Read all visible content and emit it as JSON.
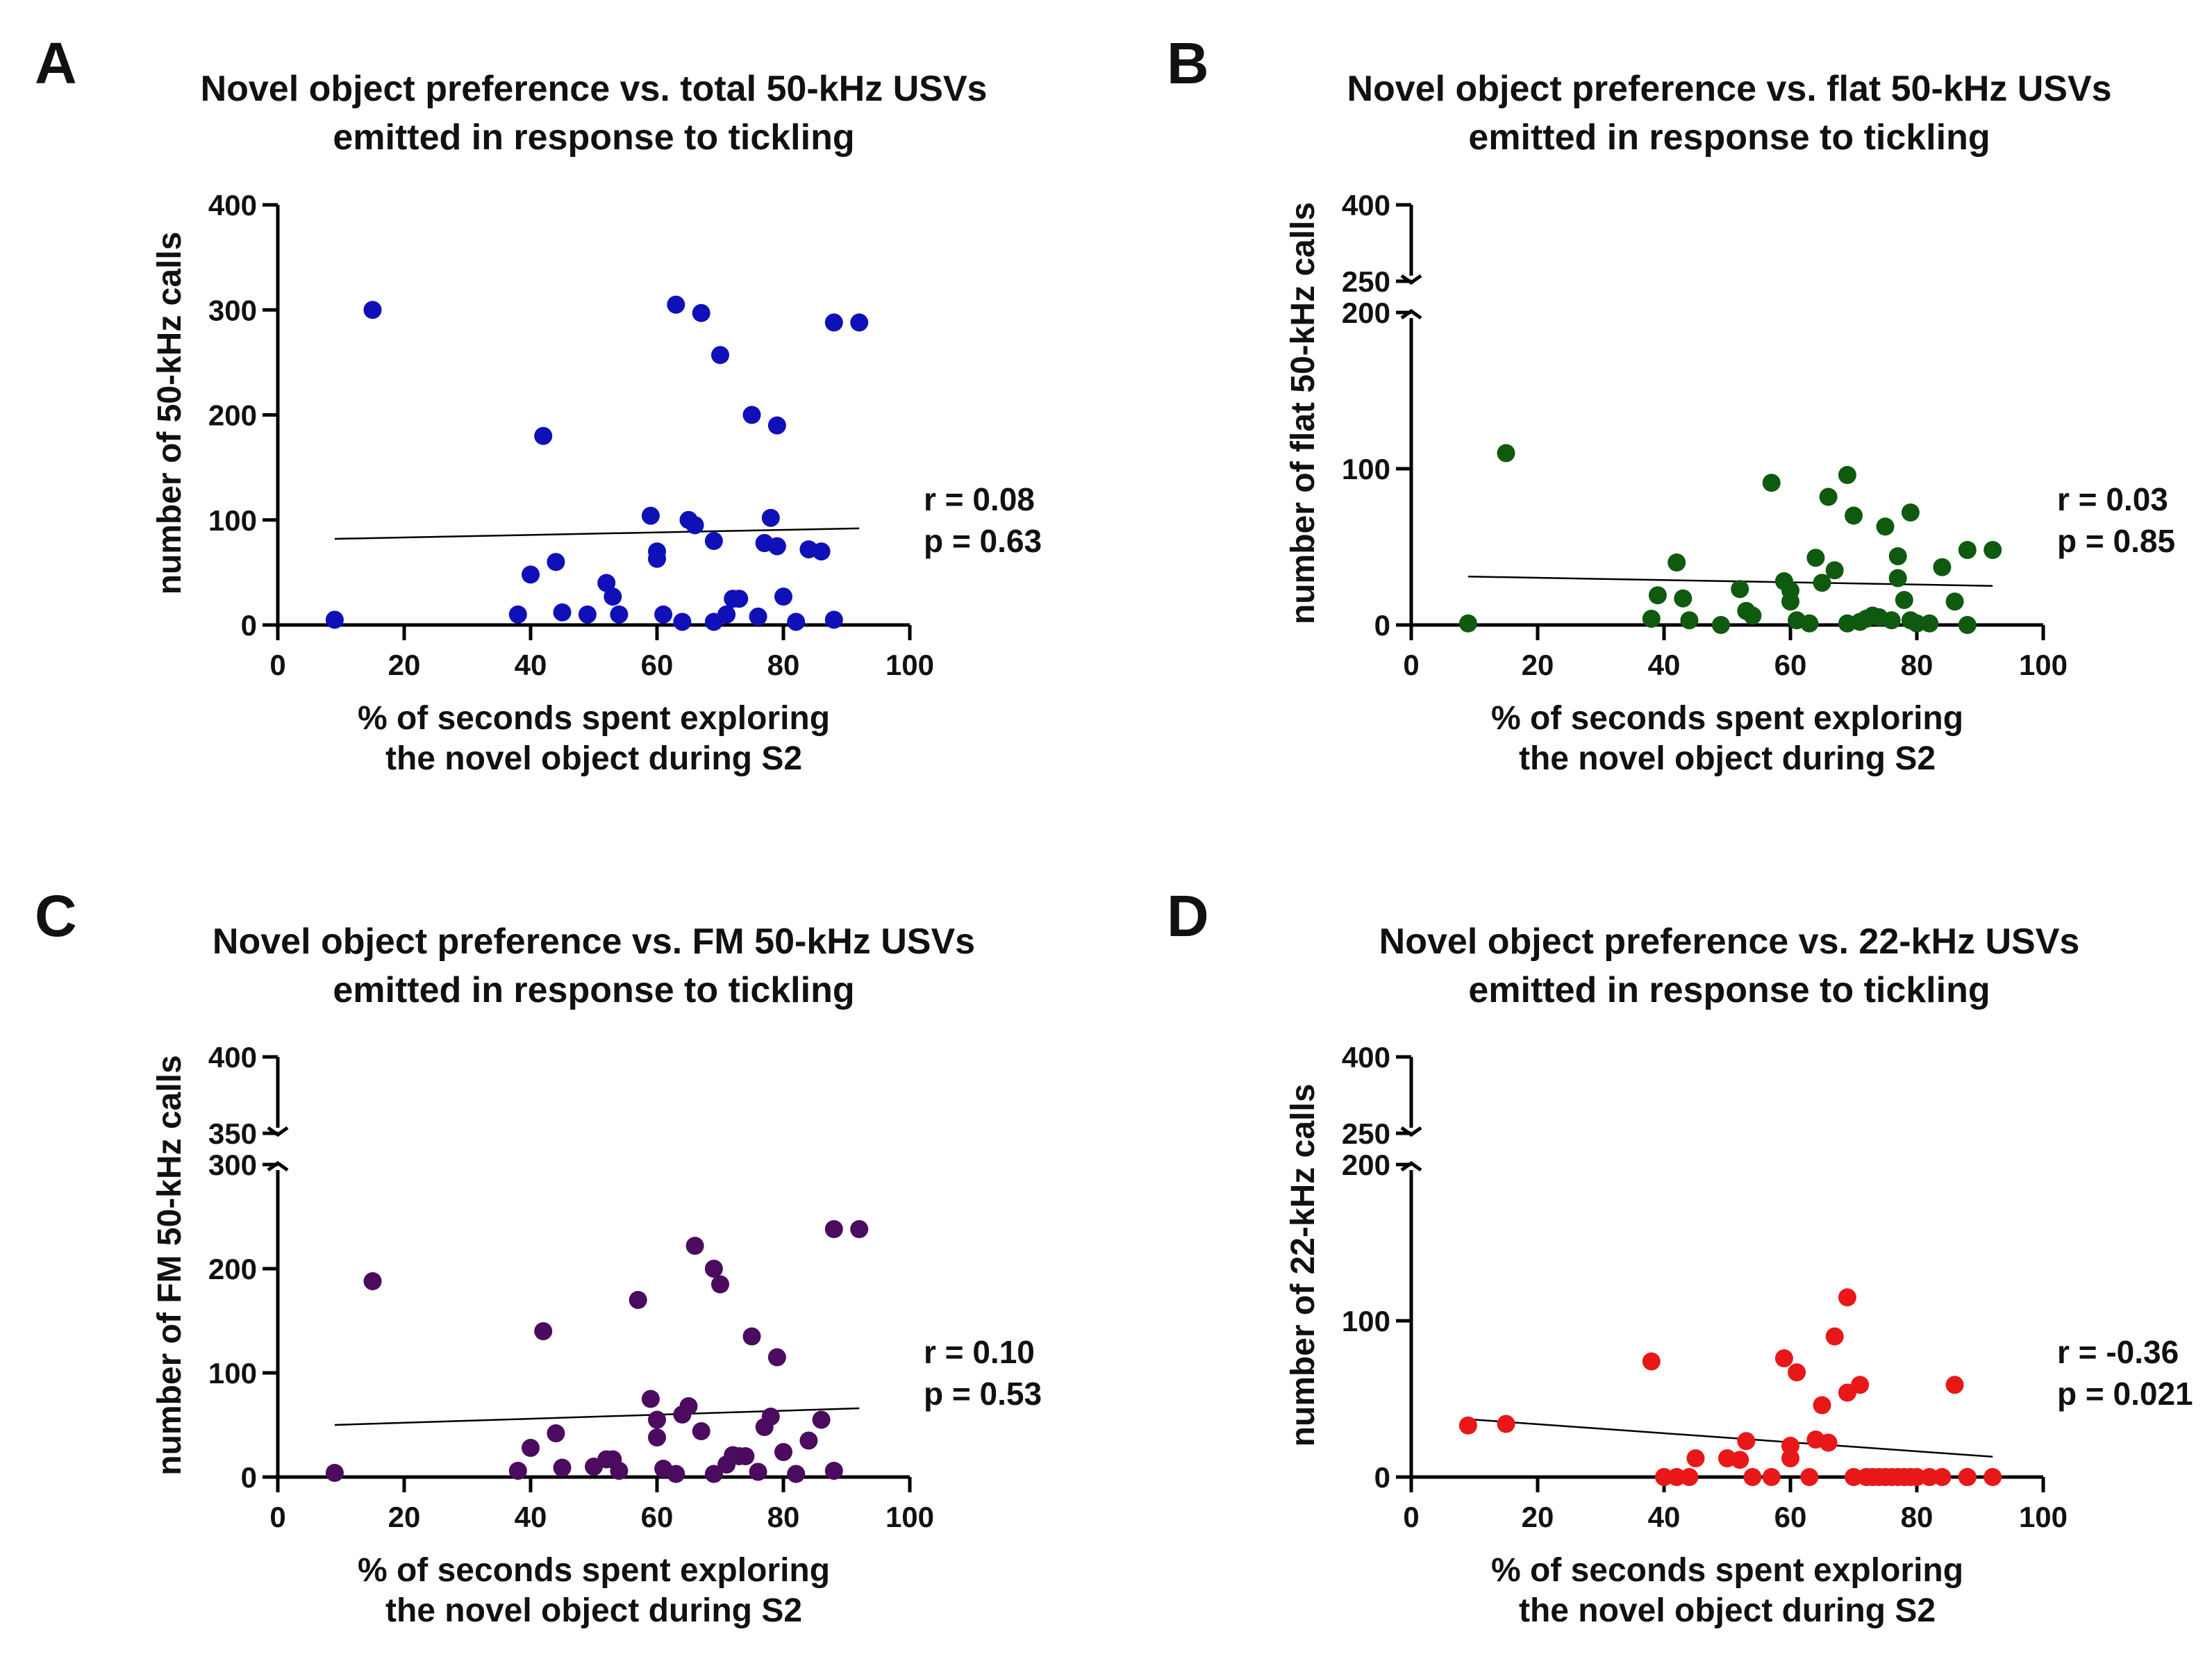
{
  "chart_data": [
    {
      "panel": "A",
      "type": "scatter",
      "title": [
        "Novel object preference vs. total 50-kHz USVs",
        "emitted in response to tickling"
      ],
      "xlabel": [
        "% of seconds spent exploring",
        "the novel object during S2"
      ],
      "ylabel": "number of 50-kHz calls",
      "xlim": [
        0,
        100
      ],
      "xticks": [
        "0",
        "20",
        "40",
        "60",
        "80",
        "100"
      ],
      "ylim": [
        0,
        400
      ],
      "yticks": [
        "0",
        "100",
        "200",
        "300",
        "400"
      ],
      "color": "#1010b8",
      "r_text": "r = 0.08",
      "p_text": "p = 0.63",
      "fit_line": [
        [
          9,
          82
        ],
        [
          92,
          92
        ]
      ],
      "x": [
        9,
        15,
        38,
        40,
        42,
        44,
        45,
        49,
        52,
        53,
        54,
        59,
        60,
        60,
        61,
        63,
        64,
        65,
        66,
        67,
        69,
        69,
        70,
        71,
        72,
        73,
        75,
        76,
        77,
        77,
        78,
        79,
        79,
        80,
        82,
        84,
        86,
        88,
        88,
        92
      ],
      "y": [
        5,
        300,
        10,
        48,
        180,
        60,
        12,
        10,
        40,
        27,
        10,
        104,
        70,
        63,
        10,
        305,
        3,
        100,
        95,
        297,
        80,
        3,
        257,
        10,
        25,
        25,
        200,
        8,
        78,
        78,
        102,
        75,
        190,
        27,
        3,
        72,
        70,
        5,
        288,
        288
      ]
    },
    {
      "panel": "B",
      "type": "scatter",
      "title": [
        "Novel object preference vs. flat 50-kHz USVs",
        "emitted in response to tickling"
      ],
      "xlabel": [
        "% of seconds spent exploring",
        "the novel object during S2"
      ],
      "ylabel": "number of flat 50-kHz calls",
      "xlim": [
        0,
        100
      ],
      "xticks": [
        "0",
        "20",
        "40",
        "60",
        "80",
        "100"
      ],
      "ylim": [
        0,
        400
      ],
      "yticks": [
        "0",
        "100",
        "200",
        "250",
        "400"
      ],
      "y_break": [
        200,
        250
      ],
      "color": "#0f5a0f",
      "r_text": "r = 0.03",
      "p_text": "p = 0.85",
      "fit_line": [
        [
          9,
          31
        ],
        [
          92,
          25
        ]
      ],
      "x": [
        9,
        15,
        38,
        39,
        42,
        43,
        44,
        49,
        52,
        53,
        54,
        57,
        59,
        60,
        60,
        61,
        63,
        64,
        65,
        66,
        67,
        69,
        69,
        70,
        71,
        72,
        73,
        74,
        75,
        76,
        77,
        77,
        78,
        79,
        79,
        80,
        82,
        84,
        86,
        88,
        88,
        92
      ],
      "y": [
        1,
        110,
        4,
        19,
        40,
        17,
        3,
        0,
        23,
        9,
        6,
        91,
        28,
        15,
        22,
        3,
        1,
        43,
        27,
        82,
        35,
        96,
        1,
        70,
        2,
        4,
        6,
        5,
        63,
        3,
        30,
        44,
        16,
        72,
        3,
        1,
        1,
        37,
        15,
        0,
        48,
        48
      ]
    },
    {
      "panel": "C",
      "type": "scatter",
      "title": [
        "Novel object preference vs. FM 50-kHz USVs",
        "emitted in response to tickling"
      ],
      "xlabel": [
        "% of seconds spent exploring",
        "the novel object during S2"
      ],
      "ylabel": "number of FM 50-kHz calls",
      "xlim": [
        0,
        100
      ],
      "xticks": [
        "0",
        "20",
        "40",
        "60",
        "80",
        "100"
      ],
      "ylim": [
        0,
        400
      ],
      "yticks": [
        "0",
        "100",
        "200",
        "300",
        "350",
        "400"
      ],
      "y_break": [
        300,
        350
      ],
      "color": "#4b0b5e",
      "r_text": "r = 0.10",
      "p_text": "p = 0.53",
      "fit_line": [
        [
          9,
          50
        ],
        [
          92,
          66
        ]
      ],
      "x": [
        9,
        15,
        38,
        40,
        42,
        44,
        45,
        50,
        52,
        53,
        54,
        57,
        59,
        60,
        60,
        61,
        63,
        64,
        65,
        66,
        67,
        69,
        69,
        70,
        71,
        72,
        73,
        74,
        75,
        76,
        77,
        78,
        79,
        80,
        82,
        84,
        86,
        88,
        88,
        92
      ],
      "y": [
        4,
        188,
        6,
        28,
        140,
        42,
        9,
        10,
        17,
        17,
        6,
        170,
        75,
        38,
        55,
        8,
        3,
        60,
        68,
        222,
        44,
        200,
        3,
        185,
        12,
        21,
        20,
        20,
        135,
        5,
        48,
        58,
        115,
        24,
        3,
        35,
        55,
        6,
        238,
        238
      ]
    },
    {
      "panel": "D",
      "type": "scatter",
      "title": [
        "Novel object preference vs. 22-kHz USVs",
        "emitted in response to tickling"
      ],
      "xlabel": [
        "% of seconds spent exploring",
        "the novel object during S2"
      ],
      "ylabel": "number of 22-kHz calls",
      "xlim": [
        0,
        100
      ],
      "xticks": [
        "0",
        "20",
        "40",
        "60",
        "80",
        "100"
      ],
      "ylim": [
        0,
        400
      ],
      "yticks": [
        "0",
        "100",
        "200",
        "250",
        "400"
      ],
      "y_break": [
        200,
        250
      ],
      "color": "#e81818",
      "r_text": "r = -0.36",
      "p_text": "p = 0.021",
      "fit_line": [
        [
          9,
          37
        ],
        [
          92,
          13
        ]
      ],
      "x": [
        9,
        15,
        38,
        40,
        42,
        44,
        45,
        50,
        52,
        53,
        54,
        57,
        59,
        60,
        60,
        61,
        63,
        64,
        65,
        66,
        67,
        69,
        69,
        70,
        71,
        72,
        73,
        74,
        75,
        76,
        77,
        78,
        79,
        80,
        82,
        84,
        86,
        88,
        88,
        92
      ],
      "y": [
        33,
        34,
        74,
        0,
        0,
        0,
        12,
        12,
        11,
        23,
        0,
        0,
        76,
        20,
        12,
        67,
        0,
        24,
        46,
        22,
        90,
        54,
        115,
        0,
        59,
        0,
        0,
        0,
        0,
        0,
        0,
        0,
        0,
        0,
        0,
        0,
        59,
        0,
        0,
        0
      ]
    }
  ]
}
